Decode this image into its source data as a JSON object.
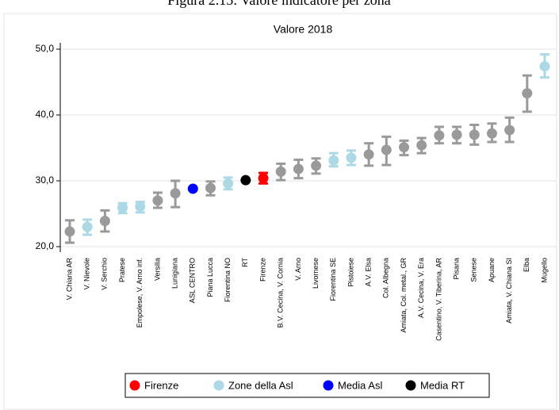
{
  "caption": "Figura 2.15: Valore indicatore per zona",
  "chart_data": {
    "type": "errorbar",
    "title": "Valore 2018",
    "categories": [
      "V. Chiana AR",
      "V. Nievole",
      "V. Serchio",
      "Pratese",
      "Empolese, V. Arno inf.",
      "Versilia",
      "Lunigiana",
      "ASL CENTRO",
      "Piana Lucca",
      "Fiorentina NO",
      "RT",
      "Firenze",
      "B.V. Cecina, V. Cornia",
      "V. Arno",
      "Livornese",
      "Fiorentina SE",
      "Pistoiese",
      "A.V. Elsa",
      "Col. Albegna",
      "Amiata, Col. metal., GR",
      "A.V. Cecina, V. Era",
      "Casentino, V. Tiberina, AR",
      "Pisana",
      "Senese",
      "Apuane",
      "Amiata, V. Chiana SI",
      "Elba",
      "Mugello"
    ],
    "values": [
      22.3,
      23.0,
      23.9,
      25.9,
      26.1,
      27.0,
      28.1,
      28.8,
      28.9,
      29.6,
      30.1,
      30.4,
      31.4,
      31.8,
      32.3,
      33.1,
      33.5,
      34.0,
      34.7,
      35.1,
      35.4,
      36.9,
      37.0,
      37.0,
      37.2,
      37.7,
      43.3,
      47.4
    ],
    "low": [
      20.6,
      21.8,
      22.3,
      25.1,
      25.2,
      25.9,
      26.0,
      null,
      27.8,
      28.7,
      null,
      29.6,
      30.1,
      30.4,
      31.1,
      32.2,
      32.4,
      32.3,
      32.4,
      33.9,
      34.2,
      35.7,
      35.7,
      35.5,
      35.9,
      35.9,
      40.5,
      45.7
    ],
    "high": [
      24.0,
      24.1,
      25.5,
      26.6,
      26.8,
      28.2,
      30.0,
      null,
      29.9,
      30.5,
      null,
      31.2,
      32.6,
      33.2,
      33.4,
      34.2,
      34.6,
      35.7,
      36.7,
      36.1,
      36.5,
      38.2,
      38.2,
      38.5,
      38.7,
      39.6,
      46.0,
      49.2
    ],
    "colors": [
      "#9a9a9a",
      "#add8e6",
      "#9a9a9a",
      "#add8e6",
      "#add8e6",
      "#9a9a9a",
      "#9a9a9a",
      "#0000ff",
      "#9a9a9a",
      "#add8e6",
      "#000000",
      "#ff0000",
      "#9a9a9a",
      "#9a9a9a",
      "#9a9a9a",
      "#add8e6",
      "#add8e6",
      "#9a9a9a",
      "#9a9a9a",
      "#9a9a9a",
      "#9a9a9a",
      "#9a9a9a",
      "#9a9a9a",
      "#9a9a9a",
      "#9a9a9a",
      "#9a9a9a",
      "#9a9a9a",
      "#add8e6"
    ],
    "ylim": [
      20,
      50
    ],
    "yticks": [
      {
        "value": 20,
        "label": "20,0"
      },
      {
        "value": 30,
        "label": "30,0"
      },
      {
        "value": 40,
        "label": "40,0"
      },
      {
        "value": 50,
        "label": "50,0"
      }
    ],
    "grid": true,
    "legend": [
      {
        "name": "Firenze",
        "color": "#ff0000"
      },
      {
        "name": "Zone della Asl",
        "color": "#add8e6"
      },
      {
        "name": "Media Asl",
        "color": "#0000ff"
      },
      {
        "name": "Media RT",
        "color": "#000000"
      }
    ]
  }
}
